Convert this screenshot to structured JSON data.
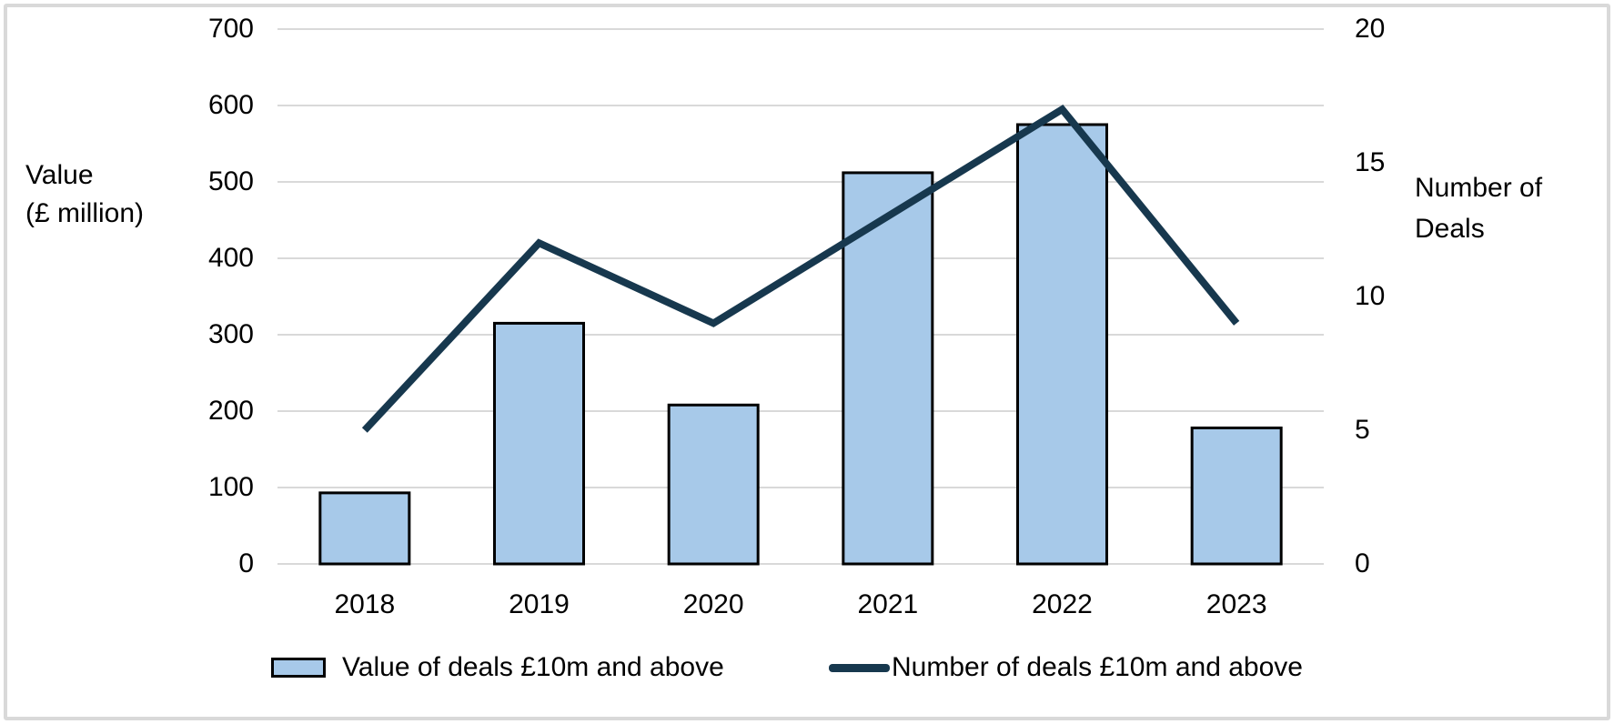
{
  "chart_data": {
    "type": "combo",
    "categories": [
      "2018",
      "2019",
      "2020",
      "2021",
      "2022",
      "2023"
    ],
    "series": [
      {
        "name": "Value of deals £10m and above",
        "type": "bar",
        "axis": "left",
        "values": [
          93,
          315,
          208,
          512,
          575,
          178
        ]
      },
      {
        "name": "Number of deals £10m and above",
        "type": "line",
        "axis": "right",
        "values": [
          5,
          12,
          9,
          13,
          17,
          9
        ]
      }
    ],
    "left_axis": {
      "title": "Value\n(£ million)",
      "ticks": [
        0,
        100,
        200,
        300,
        400,
        500,
        600,
        700
      ],
      "range": [
        0,
        700
      ]
    },
    "right_axis": {
      "title": "Number of\nDeals",
      "ticks": [
        0,
        5,
        10,
        15,
        20
      ],
      "range": [
        0,
        20
      ]
    },
    "grid": "horizontal",
    "legend_position": "bottom"
  },
  "colors": {
    "bar_fill": "#a7c9e9",
    "bar_border": "#000000",
    "line": "#17384e",
    "gridline": "#d9d9d9",
    "frame_border": "#d9d9d9",
    "text": "#000000",
    "background": "#ffffff"
  }
}
